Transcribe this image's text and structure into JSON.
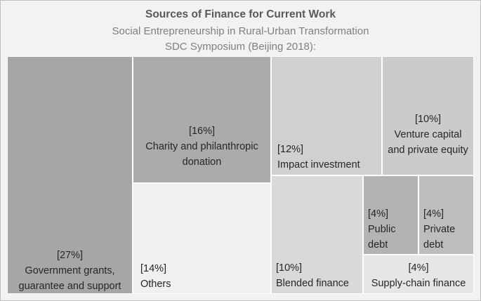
{
  "title": "Sources of Finance for Current Work",
  "subtitle": "Social Entrepreneurship in Rural-Urban Transformation",
  "subtitle2": "SDC Symposium (Beijing 2018):",
  "chart_data": {
    "type": "treemap",
    "title": "Sources of Finance for Current Work",
    "subtitle": "Social Entrepreneurship in Rural-Urban Transformation SDC Symposium (Beijing 2018):",
    "unit": "%",
    "items": [
      {
        "pct_label": "[27%]",
        "label": "Government grants, guarantee and support",
        "value": 27,
        "color": "#a6a6a6"
      },
      {
        "pct_label": "[16%]",
        "label": "Charity and philanthropic donation",
        "value": 16,
        "color": "#ababab"
      },
      {
        "pct_label": "[14%]",
        "label": "Others",
        "value": 14,
        "color": "#f0f0f0"
      },
      {
        "pct_label": "[12%]",
        "label": "Impact investment",
        "value": 12,
        "color": "#d0d0d0"
      },
      {
        "pct_label": "[10%]",
        "label": "Venture capital and private equity",
        "value": 10,
        "color": "#cbcbcb"
      },
      {
        "pct_label": "[10%]",
        "label": "Blended finance",
        "value": 10,
        "color": "#d9d9d9"
      },
      {
        "pct_label": "[4%]",
        "label": "Public debt",
        "value": 4,
        "color": "#b3b3b3"
      },
      {
        "pct_label": "[4%]",
        "label": "Private debt",
        "value": 4,
        "color": "#bdbdbd"
      },
      {
        "pct_label": "[4%]",
        "label": "Supply-chain finance",
        "value": 4,
        "color": "#e6e6e6"
      }
    ]
  }
}
